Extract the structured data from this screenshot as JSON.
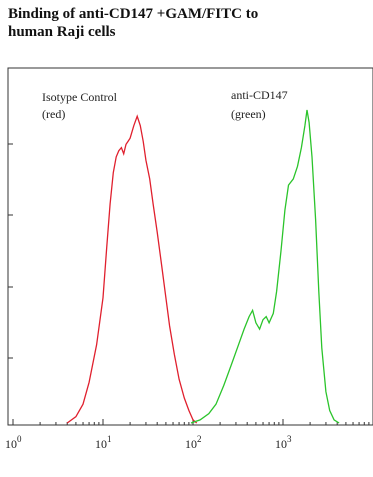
{
  "title_line1": "Binding of anti-CD147 +GAM/FITC to",
  "title_line2": "human Raji cells",
  "chart_data": {
    "type": "line",
    "xscale": "log",
    "xlim": [
      1,
      10000
    ],
    "x_ticks": [
      {
        "base": "10",
        "exp": "0"
      },
      {
        "base": "10",
        "exp": "1"
      },
      {
        "base": "10",
        "exp": "2"
      },
      {
        "base": "10",
        "exp": "3"
      }
    ],
    "ylim": [
      0,
      100
    ],
    "grid": false,
    "series": [
      {
        "name_line1": "Isotype Control",
        "name_line2": "(red)",
        "color": "#e0202e",
        "points": [
          [
            4.0,
            0
          ],
          [
            5.0,
            2
          ],
          [
            6.0,
            6
          ],
          [
            7.0,
            13
          ],
          [
            8.5,
            25
          ],
          [
            10,
            40
          ],
          [
            11,
            56
          ],
          [
            12,
            70
          ],
          [
            13,
            80
          ],
          [
            14,
            85
          ],
          [
            15,
            87
          ],
          [
            16,
            88
          ],
          [
            17,
            86
          ],
          [
            18,
            89
          ],
          [
            20,
            91
          ],
          [
            22,
            95
          ],
          [
            24,
            98
          ],
          [
            26,
            95
          ],
          [
            28,
            90
          ],
          [
            30,
            84
          ],
          [
            33,
            78
          ],
          [
            36,
            70
          ],
          [
            40,
            61
          ],
          [
            45,
            50
          ],
          [
            50,
            40
          ],
          [
            55,
            31
          ],
          [
            62,
            22
          ],
          [
            70,
            14
          ],
          [
            80,
            8
          ],
          [
            90,
            4
          ],
          [
            100,
            1
          ],
          [
            110,
            0
          ]
        ]
      },
      {
        "name_line1": "anti-CD147",
        "name_line2": "(green)",
        "color": "#2bc42b",
        "points": [
          [
            95,
            0
          ],
          [
            120,
            1
          ],
          [
            150,
            3
          ],
          [
            180,
            6
          ],
          [
            220,
            12
          ],
          [
            270,
            19
          ],
          [
            320,
            25
          ],
          [
            370,
            30
          ],
          [
            420,
            34
          ],
          [
            460,
            36
          ],
          [
            500,
            32
          ],
          [
            550,
            30
          ],
          [
            600,
            33
          ],
          [
            650,
            34
          ],
          [
            700,
            32
          ],
          [
            780,
            35
          ],
          [
            850,
            42
          ],
          [
            950,
            55
          ],
          [
            1050,
            68
          ],
          [
            1150,
            76
          ],
          [
            1300,
            78
          ],
          [
            1450,
            82
          ],
          [
            1600,
            88
          ],
          [
            1750,
            95
          ],
          [
            1850,
            100
          ],
          [
            1950,
            96
          ],
          [
            2100,
            85
          ],
          [
            2300,
            65
          ],
          [
            2500,
            42
          ],
          [
            2700,
            24
          ],
          [
            3000,
            10
          ],
          [
            3300,
            4
          ],
          [
            3700,
            1
          ],
          [
            4200,
            0
          ]
        ]
      }
    ]
  }
}
